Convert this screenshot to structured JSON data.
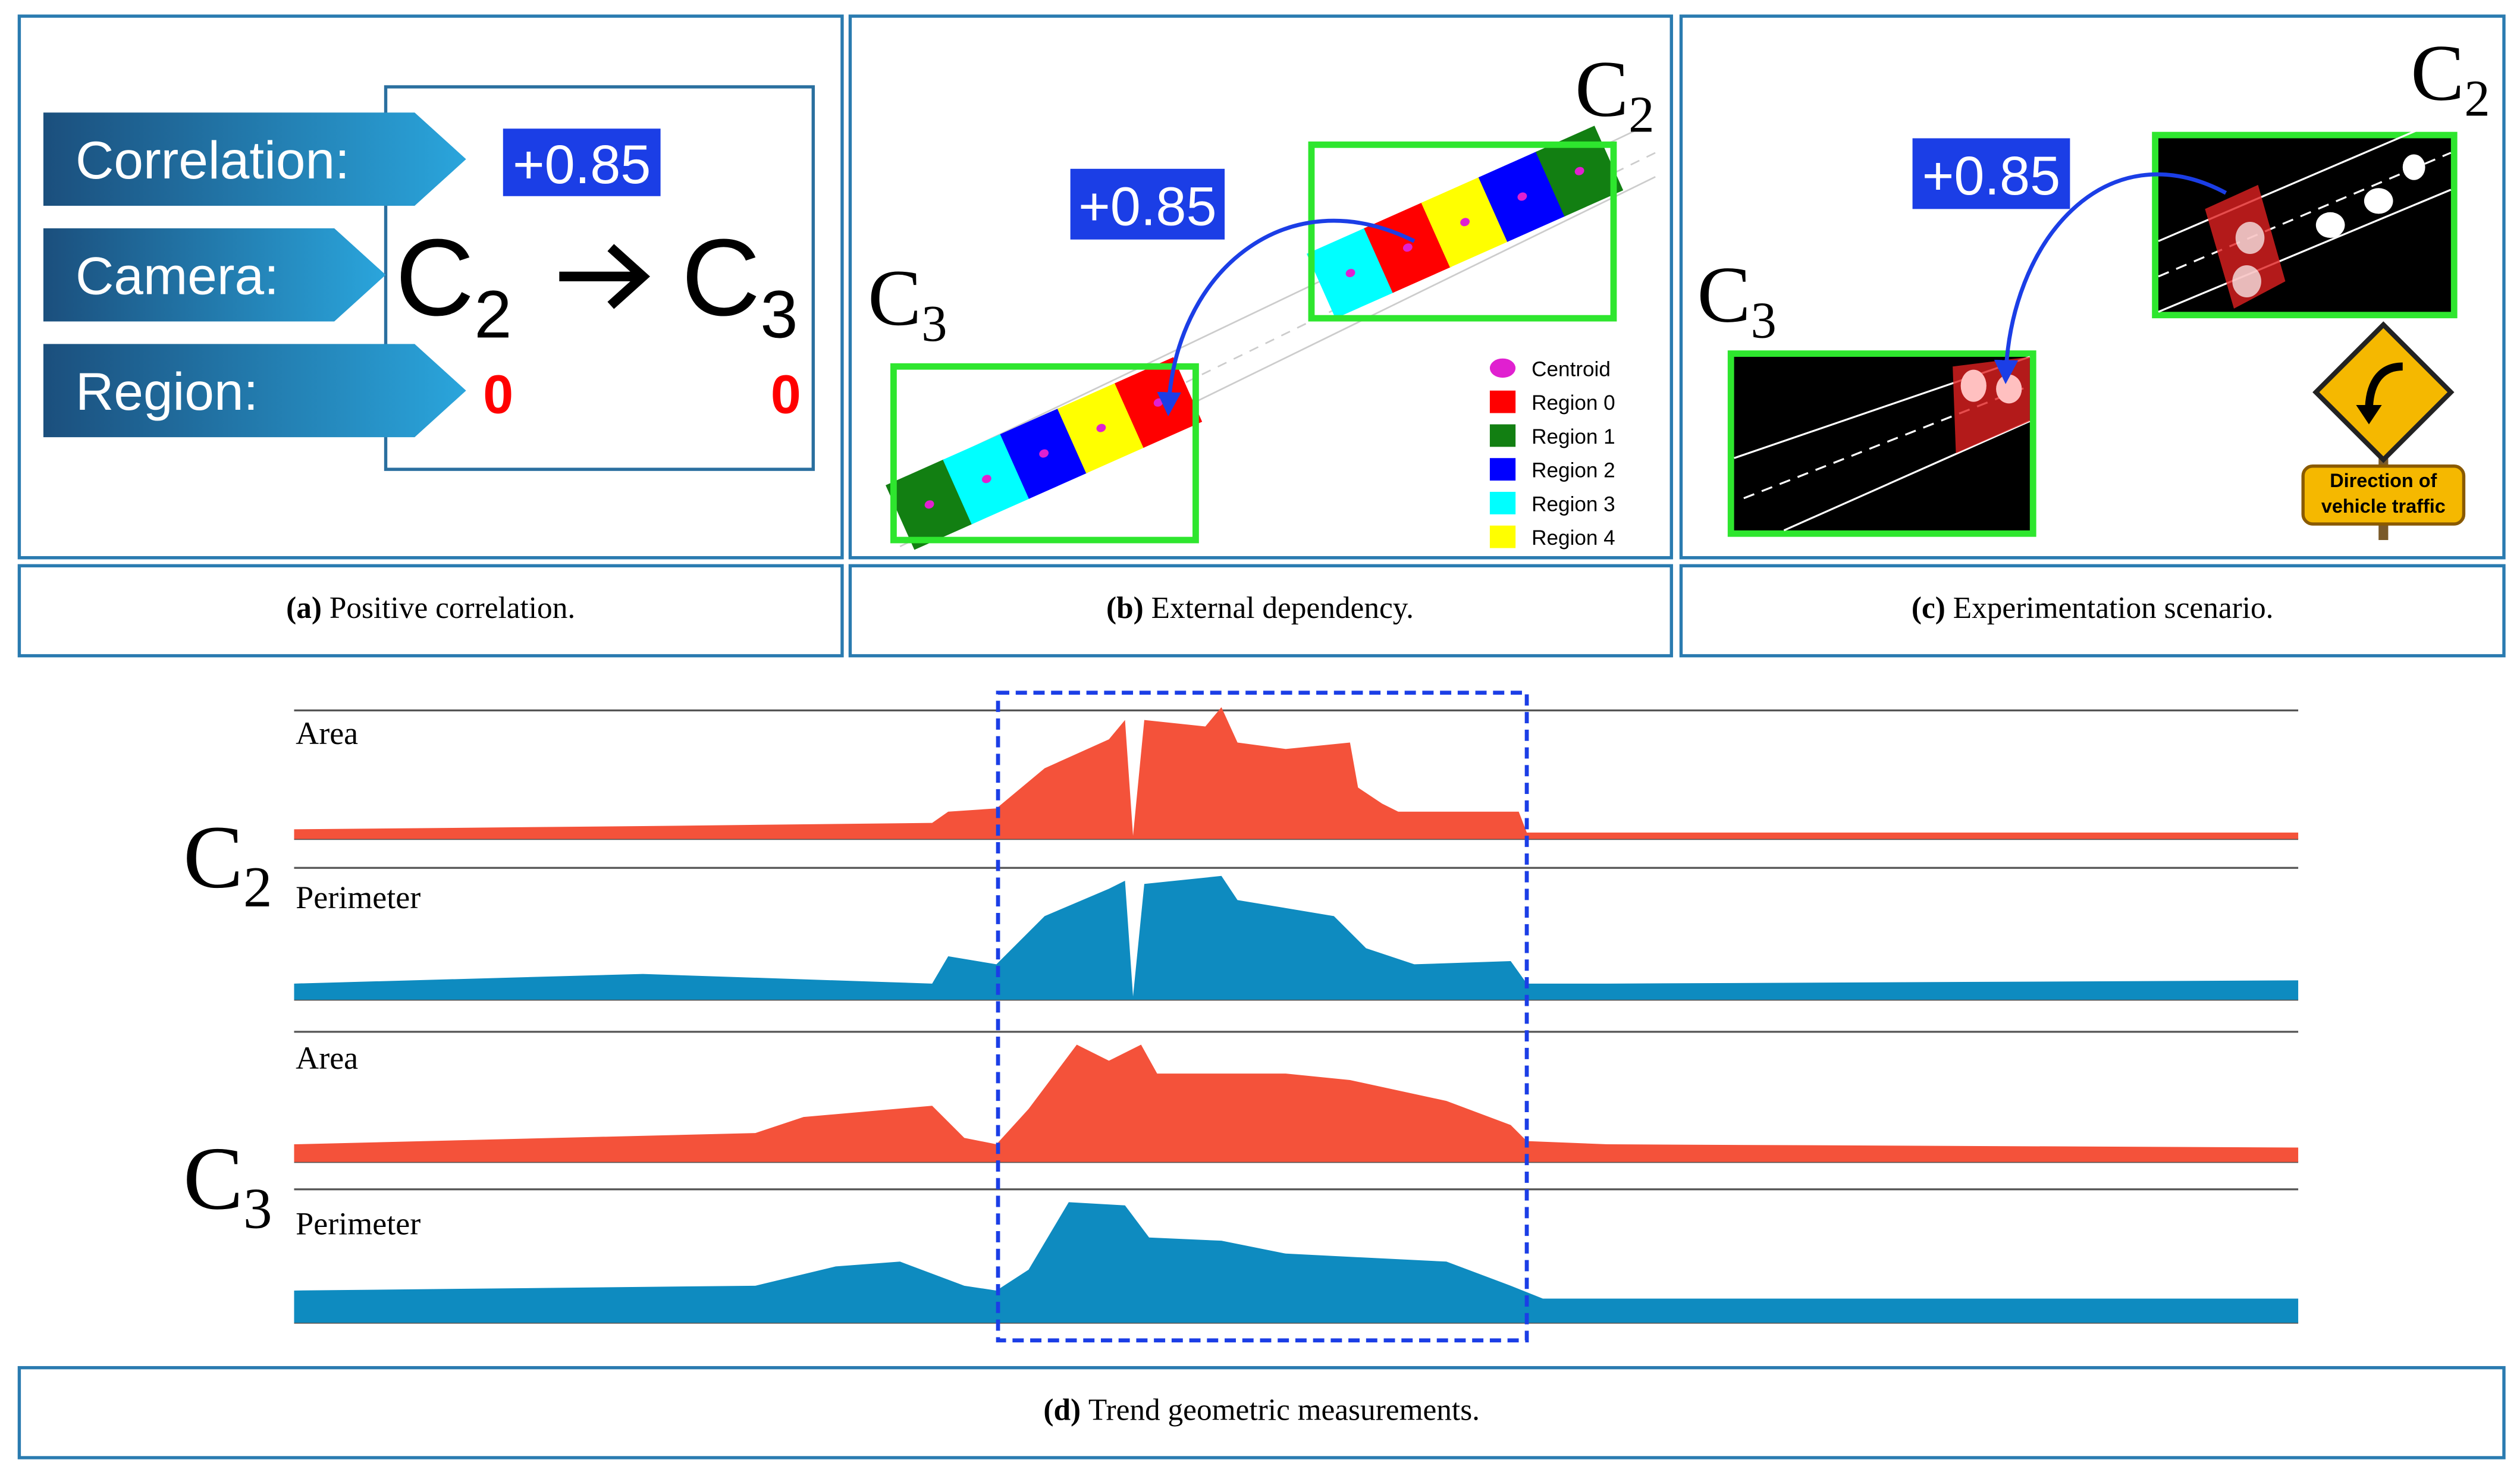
{
  "panel_a": {
    "correlation_label": "Correlation:",
    "camera_label": "Camera:",
    "region_label": "Region:",
    "correlation_value": "+0.85",
    "camera_from": {
      "base": "C",
      "index": "2"
    },
    "camera_to": {
      "base": "C",
      "index": "3"
    },
    "region_from": "0",
    "region_to": "0",
    "caption": {
      "tag": "(a)",
      "text": "Positive correlation."
    }
  },
  "panel_b": {
    "correlation_value": "+0.85",
    "camera_from": {
      "base": "C",
      "index": "2"
    },
    "camera_to": {
      "base": "C",
      "index": "3"
    },
    "legend": [
      {
        "name": "Centroid",
        "color": "#e020d0"
      },
      {
        "name": "Region 0",
        "color": "#ff0000"
      },
      {
        "name": "Region 1",
        "color": "#127f12"
      },
      {
        "name": "Region 2",
        "color": "#0000ff"
      },
      {
        "name": "Region 3",
        "color": "#00ffff"
      },
      {
        "name": "Region 4",
        "color": "#ffff00"
      }
    ],
    "caption": {
      "tag": "(b)",
      "text": "External dependency."
    }
  },
  "panel_c": {
    "correlation_value": "+0.85",
    "camera_from": {
      "base": "C",
      "index": "2"
    },
    "camera_to": {
      "base": "C",
      "index": "3"
    },
    "sign": [
      "Direction of",
      "vehicle traffic"
    ],
    "caption": {
      "tag": "(c)",
      "text": "Experimentation scenario."
    }
  },
  "panel_d": {
    "cameras": [
      {
        "base": "C",
        "index": "2"
      },
      {
        "base": "C",
        "index": "3"
      }
    ],
    "series_labels": [
      "Area",
      "Perimeter",
      "Area",
      "Perimeter"
    ],
    "caption": {
      "tag": "(d)",
      "text": "Trend geometric measurements."
    }
  }
}
